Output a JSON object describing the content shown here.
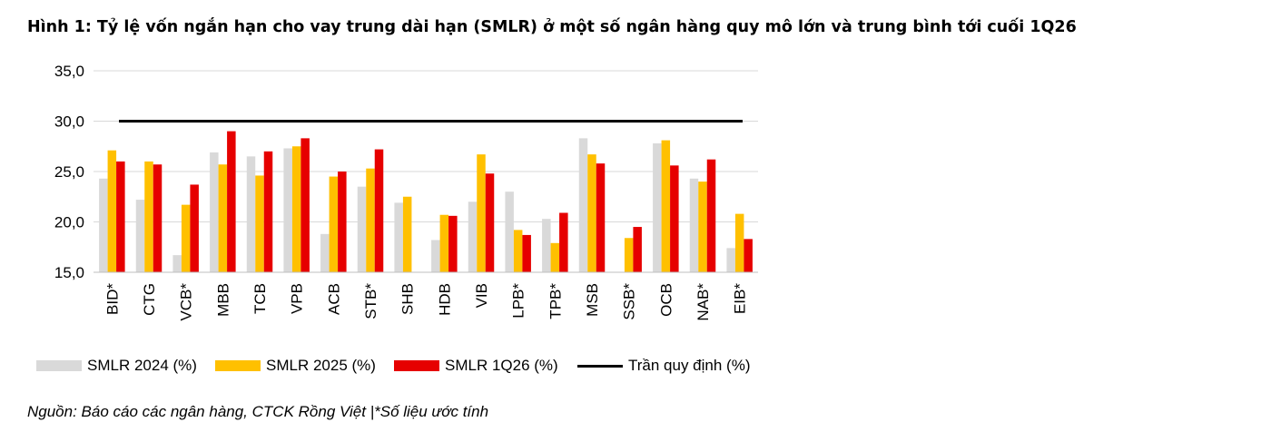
{
  "title": "Hình 1: Tỷ lệ vốn ngắn hạn cho vay trung dài hạn (SMLR) ở một số ngân hàng quy mô lớn và trung bình tới cuối 1Q26",
  "source": "Nguồn: Báo cáo các ngân hàng, CTCK Rồng Việt |*Số liệu ước tính",
  "chart_data": {
    "type": "bar",
    "categories": [
      "BID*",
      "CTG",
      "VCB*",
      "MBB",
      "TCB",
      "VPB",
      "ACB",
      "STB*",
      "SHB",
      "HDB",
      "VIB",
      "LPB*",
      "TPB*",
      "MSB",
      "SSB*",
      "OCB",
      "NAB*",
      "EIB*"
    ],
    "series": [
      {
        "name": "SMLR 2024 (%)",
        "color": "#d9d9d9",
        "values": [
          24.3,
          22.2,
          16.7,
          26.9,
          26.5,
          27.3,
          18.8,
          23.5,
          21.9,
          18.2,
          22.0,
          23.0,
          20.3,
          28.3,
          null,
          27.8,
          24.3,
          17.4
        ]
      },
      {
        "name": "SMLR 2025 (%)",
        "color": "#ffc000",
        "values": [
          27.1,
          26.0,
          21.7,
          25.7,
          24.6,
          27.5,
          24.5,
          25.3,
          22.5,
          20.7,
          26.7,
          19.2,
          17.9,
          26.7,
          18.4,
          28.1,
          24.0,
          20.8
        ]
      },
      {
        "name": "SMLR 1Q26 (%)",
        "color": "#e60000",
        "values": [
          26.0,
          25.7,
          23.7,
          29.0,
          27.0,
          28.3,
          25.0,
          27.2,
          null,
          20.6,
          24.8,
          18.7,
          20.9,
          25.8,
          19.5,
          25.6,
          26.2,
          18.3
        ]
      }
    ],
    "threshold": {
      "name": "Trần quy định (%)",
      "value": 30.0,
      "color": "#000000"
    },
    "y_ticks": [
      "15,0",
      "20,0",
      "25,0",
      "30,0",
      "35,0"
    ],
    "ylim": [
      15,
      35
    ],
    "grid": true,
    "legend_position": "bottom"
  }
}
